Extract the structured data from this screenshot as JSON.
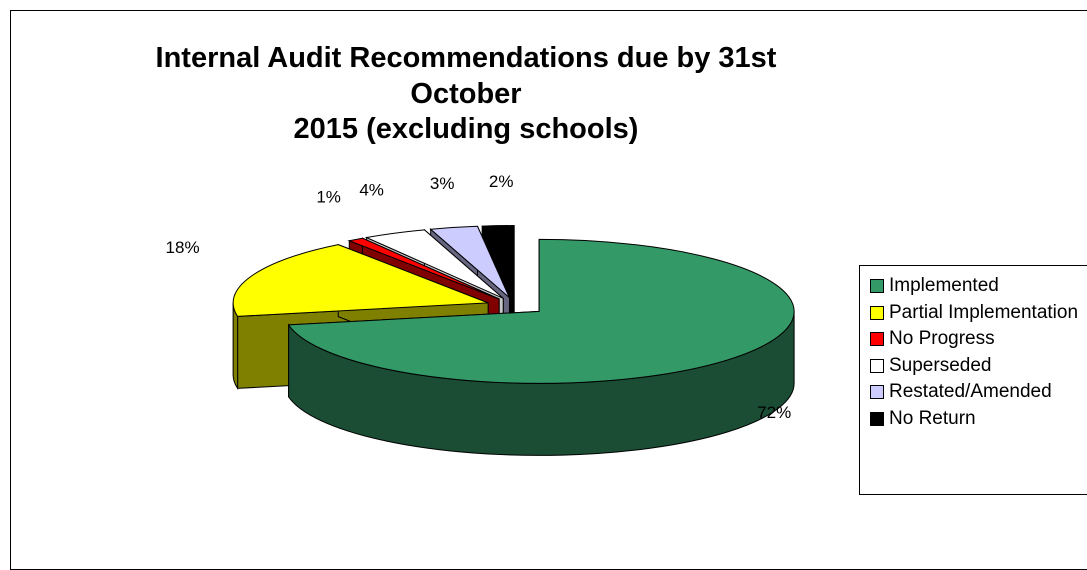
{
  "chart_data": {
    "type": "pie",
    "title": "Internal Audit Recommendations due by 31st October\n2015 (excluding schools)",
    "slices": [
      {
        "label": "Implemented",
        "value": 72,
        "value_label": "72%",
        "color": "#339966"
      },
      {
        "label": "Partial Implementation",
        "value": 18,
        "value_label": "18%",
        "color": "#ffff00"
      },
      {
        "label": "No Progress",
        "value": 1,
        "value_label": "1%",
        "color": "#ff0000"
      },
      {
        "label": "Superseded",
        "value": 4,
        "value_label": "4%",
        "color": "#ffffff"
      },
      {
        "label": "Restated/Amended",
        "value": 3,
        "value_label": "3%",
        "color": "#ccccff"
      },
      {
        "label": "No Return",
        "value": 2,
        "value_label": "2%",
        "color": "#000000"
      }
    ],
    "exploded": true,
    "three_d": true,
    "legend_position": "right"
  }
}
